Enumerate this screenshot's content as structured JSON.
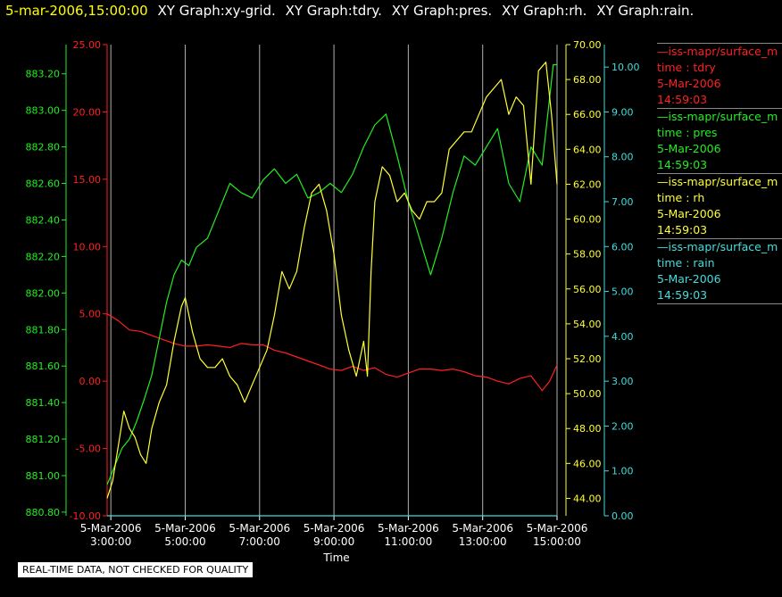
{
  "header": {
    "timestamp": "5-mar-2006,15:00:00",
    "graphs": [
      "XY Graph:xy-grid.",
      "XY Graph:tdry.",
      "XY Graph:pres.",
      "XY Graph:rh.",
      "XY Graph:rain."
    ]
  },
  "note": "REAL-TIME DATA, NOT CHECKED FOR QUALITY",
  "legend": [
    {
      "line": "—iss-mapr/surface_m",
      "var": "time : tdry",
      "date": "5-Mar-2006",
      "time": "14:59:03",
      "color": "#ff2020"
    },
    {
      "line": "—iss-mapr/surface_m",
      "var": "time : pres",
      "date": "5-Mar-2006",
      "time": "14:59:03",
      "color": "#22ee22"
    },
    {
      "line": "—iss-mapr/surface_m",
      "var": "time : rh",
      "date": "5-Mar-2006",
      "time": "14:59:03",
      "color": "#ffff33"
    },
    {
      "line": "—iss-mapr/surface_m",
      "var": "time : rain",
      "date": "5-Mar-2006",
      "time": "14:59:03",
      "color": "#44dddd"
    }
  ],
  "chart_data": {
    "type": "line",
    "xlabel": "Time",
    "x_ticks": [
      {
        "date": "5-Mar-2006",
        "time": "3:00:00"
      },
      {
        "date": "5-Mar-2006",
        "time": "5:00:00"
      },
      {
        "date": "5-Mar-2006",
        "time": "7:00:00"
      },
      {
        "date": "5-Mar-2006",
        "time": "9:00:00"
      },
      {
        "date": "5-Mar-2006",
        "time": "11:00:00"
      },
      {
        "date": "5-Mar-2006",
        "time": "13:00:00"
      },
      {
        "date": "5-Mar-2006",
        "time": "15:00:00"
      }
    ],
    "xlim_hours": [
      2.9,
      15.0
    ],
    "grid": "vertical",
    "axes": {
      "pres": {
        "color": "#22ee22",
        "lim": [
          880.78,
          883.36
        ],
        "ticks": [
          "880.80",
          "881.00",
          "881.20",
          "881.40",
          "881.60",
          "881.80",
          "882.00",
          "882.20",
          "882.40",
          "882.60",
          "882.80",
          "883.00",
          "883.20"
        ]
      },
      "tdry": {
        "color": "#ff2020",
        "lim": [
          -10,
          25
        ],
        "ticks": [
          "-10.00",
          "-5.00",
          "0.00",
          "5.00",
          "10.00",
          "15.00",
          "20.00",
          "25.00"
        ]
      },
      "rh": {
        "color": "#ffff33",
        "lim": [
          43,
          70
        ],
        "ticks": [
          "44.00",
          "46.00",
          "48.00",
          "50.00",
          "52.00",
          "54.00",
          "56.00",
          "58.00",
          "60.00",
          "62.00",
          "64.00",
          "66.00",
          "68.00",
          "70.00"
        ]
      },
      "rain": {
        "color": "#44dddd",
        "lim": [
          0,
          10.5
        ],
        "ticks": [
          "0.00",
          "1.00",
          "2.00",
          "3.00",
          "4.00",
          "5.00",
          "6.00",
          "7.00",
          "8.00",
          "9.00",
          "10.00"
        ]
      }
    },
    "series": [
      {
        "name": "time : tdry",
        "axis": "tdry",
        "color": "#ff2020",
        "x": [
          2.9,
          3.2,
          3.5,
          3.8,
          4.1,
          4.4,
          4.7,
          5.0,
          5.3,
          5.6,
          5.9,
          6.2,
          6.5,
          6.8,
          7.1,
          7.4,
          7.7,
          8.0,
          8.3,
          8.6,
          8.9,
          9.2,
          9.5,
          9.8,
          10.1,
          10.4,
          10.7,
          11.0,
          11.3,
          11.6,
          11.9,
          12.2,
          12.5,
          12.8,
          13.1,
          13.4,
          13.7,
          14.0,
          14.3,
          14.6,
          14.8,
          15.0
        ],
        "y": [
          5.0,
          4.5,
          3.8,
          3.7,
          3.4,
          3.1,
          2.8,
          2.6,
          2.6,
          2.7,
          2.6,
          2.5,
          2.8,
          2.7,
          2.7,
          2.3,
          2.1,
          1.8,
          1.5,
          1.2,
          0.9,
          0.8,
          1.1,
          0.8,
          1.0,
          0.5,
          0.3,
          0.6,
          0.9,
          0.9,
          0.8,
          0.9,
          0.7,
          0.4,
          0.3,
          0.0,
          -0.2,
          0.2,
          0.4,
          -0.7,
          0.0,
          1.2
        ]
      },
      {
        "name": "time : pres",
        "axis": "pres",
        "color": "#22ee22",
        "x": [
          2.9,
          3.1,
          3.3,
          3.5,
          3.7,
          3.9,
          4.1,
          4.3,
          4.5,
          4.7,
          4.9,
          5.1,
          5.3,
          5.6,
          5.9,
          6.2,
          6.5,
          6.8,
          7.1,
          7.4,
          7.7,
          8.0,
          8.3,
          8.6,
          8.9,
          9.2,
          9.5,
          9.8,
          10.1,
          10.4,
          10.7,
          11.0,
          11.3,
          11.6,
          11.9,
          12.2,
          12.5,
          12.8,
          13.1,
          13.4,
          13.7,
          14.0,
          14.3,
          14.6,
          14.9,
          15.0
        ],
        "y": [
          880.95,
          881.05,
          881.15,
          881.2,
          881.3,
          881.42,
          881.55,
          881.75,
          881.95,
          882.1,
          882.18,
          882.15,
          882.25,
          882.3,
          882.45,
          882.6,
          882.55,
          882.52,
          882.62,
          882.68,
          882.6,
          882.65,
          882.52,
          882.55,
          882.6,
          882.55,
          882.65,
          882.8,
          882.92,
          882.98,
          882.75,
          882.5,
          882.3,
          882.1,
          882.3,
          882.55,
          882.75,
          882.7,
          882.8,
          882.9,
          882.6,
          882.5,
          882.8,
          882.7,
          883.25,
          883.25
        ]
      },
      {
        "name": "time : rh",
        "axis": "rh",
        "color": "#ffff33",
        "x": [
          2.9,
          3.05,
          3.2,
          3.35,
          3.5,
          3.65,
          3.8,
          3.95,
          4.1,
          4.3,
          4.5,
          4.7,
          4.9,
          5.0,
          5.2,
          5.4,
          5.6,
          5.8,
          6.0,
          6.2,
          6.4,
          6.6,
          6.8,
          7.0,
          7.2,
          7.4,
          7.6,
          7.8,
          8.0,
          8.2,
          8.4,
          8.6,
          8.8,
          9.0,
          9.2,
          9.4,
          9.6,
          9.8,
          9.9,
          10.0,
          10.1,
          10.3,
          10.5,
          10.7,
          10.9,
          11.1,
          11.3,
          11.5,
          11.7,
          11.9,
          12.1,
          12.3,
          12.5,
          12.7,
          12.9,
          13.1,
          13.3,
          13.5,
          13.7,
          13.9,
          14.1,
          14.3,
          14.5,
          14.7,
          14.85,
          15.0
        ],
        "y": [
          44.0,
          45.0,
          47.0,
          49.0,
          48.0,
          47.5,
          46.5,
          46.0,
          48.0,
          49.5,
          50.5,
          53.0,
          55.0,
          55.5,
          53.5,
          52.0,
          51.5,
          51.5,
          52.0,
          51.0,
          50.5,
          49.5,
          50.5,
          51.5,
          52.5,
          54.5,
          57.0,
          56.0,
          57.0,
          59.5,
          61.5,
          62.0,
          60.5,
          58.0,
          54.5,
          52.5,
          51.0,
          53.0,
          51.0,
          57.0,
          61.0,
          63.0,
          62.5,
          61.0,
          61.5,
          60.5,
          60.0,
          61.0,
          61.0,
          61.5,
          64.0,
          64.5,
          65.0,
          65.0,
          66.0,
          67.0,
          67.5,
          68.0,
          66.0,
          67.0,
          66.5,
          62.0,
          68.5,
          69.0,
          66.0,
          62.0
        ]
      },
      {
        "name": "time : rain",
        "axis": "rain",
        "color": "#44dddd",
        "x": [
          2.9,
          15.0
        ],
        "y": [
          0.0,
          0.0
        ]
      }
    ]
  }
}
